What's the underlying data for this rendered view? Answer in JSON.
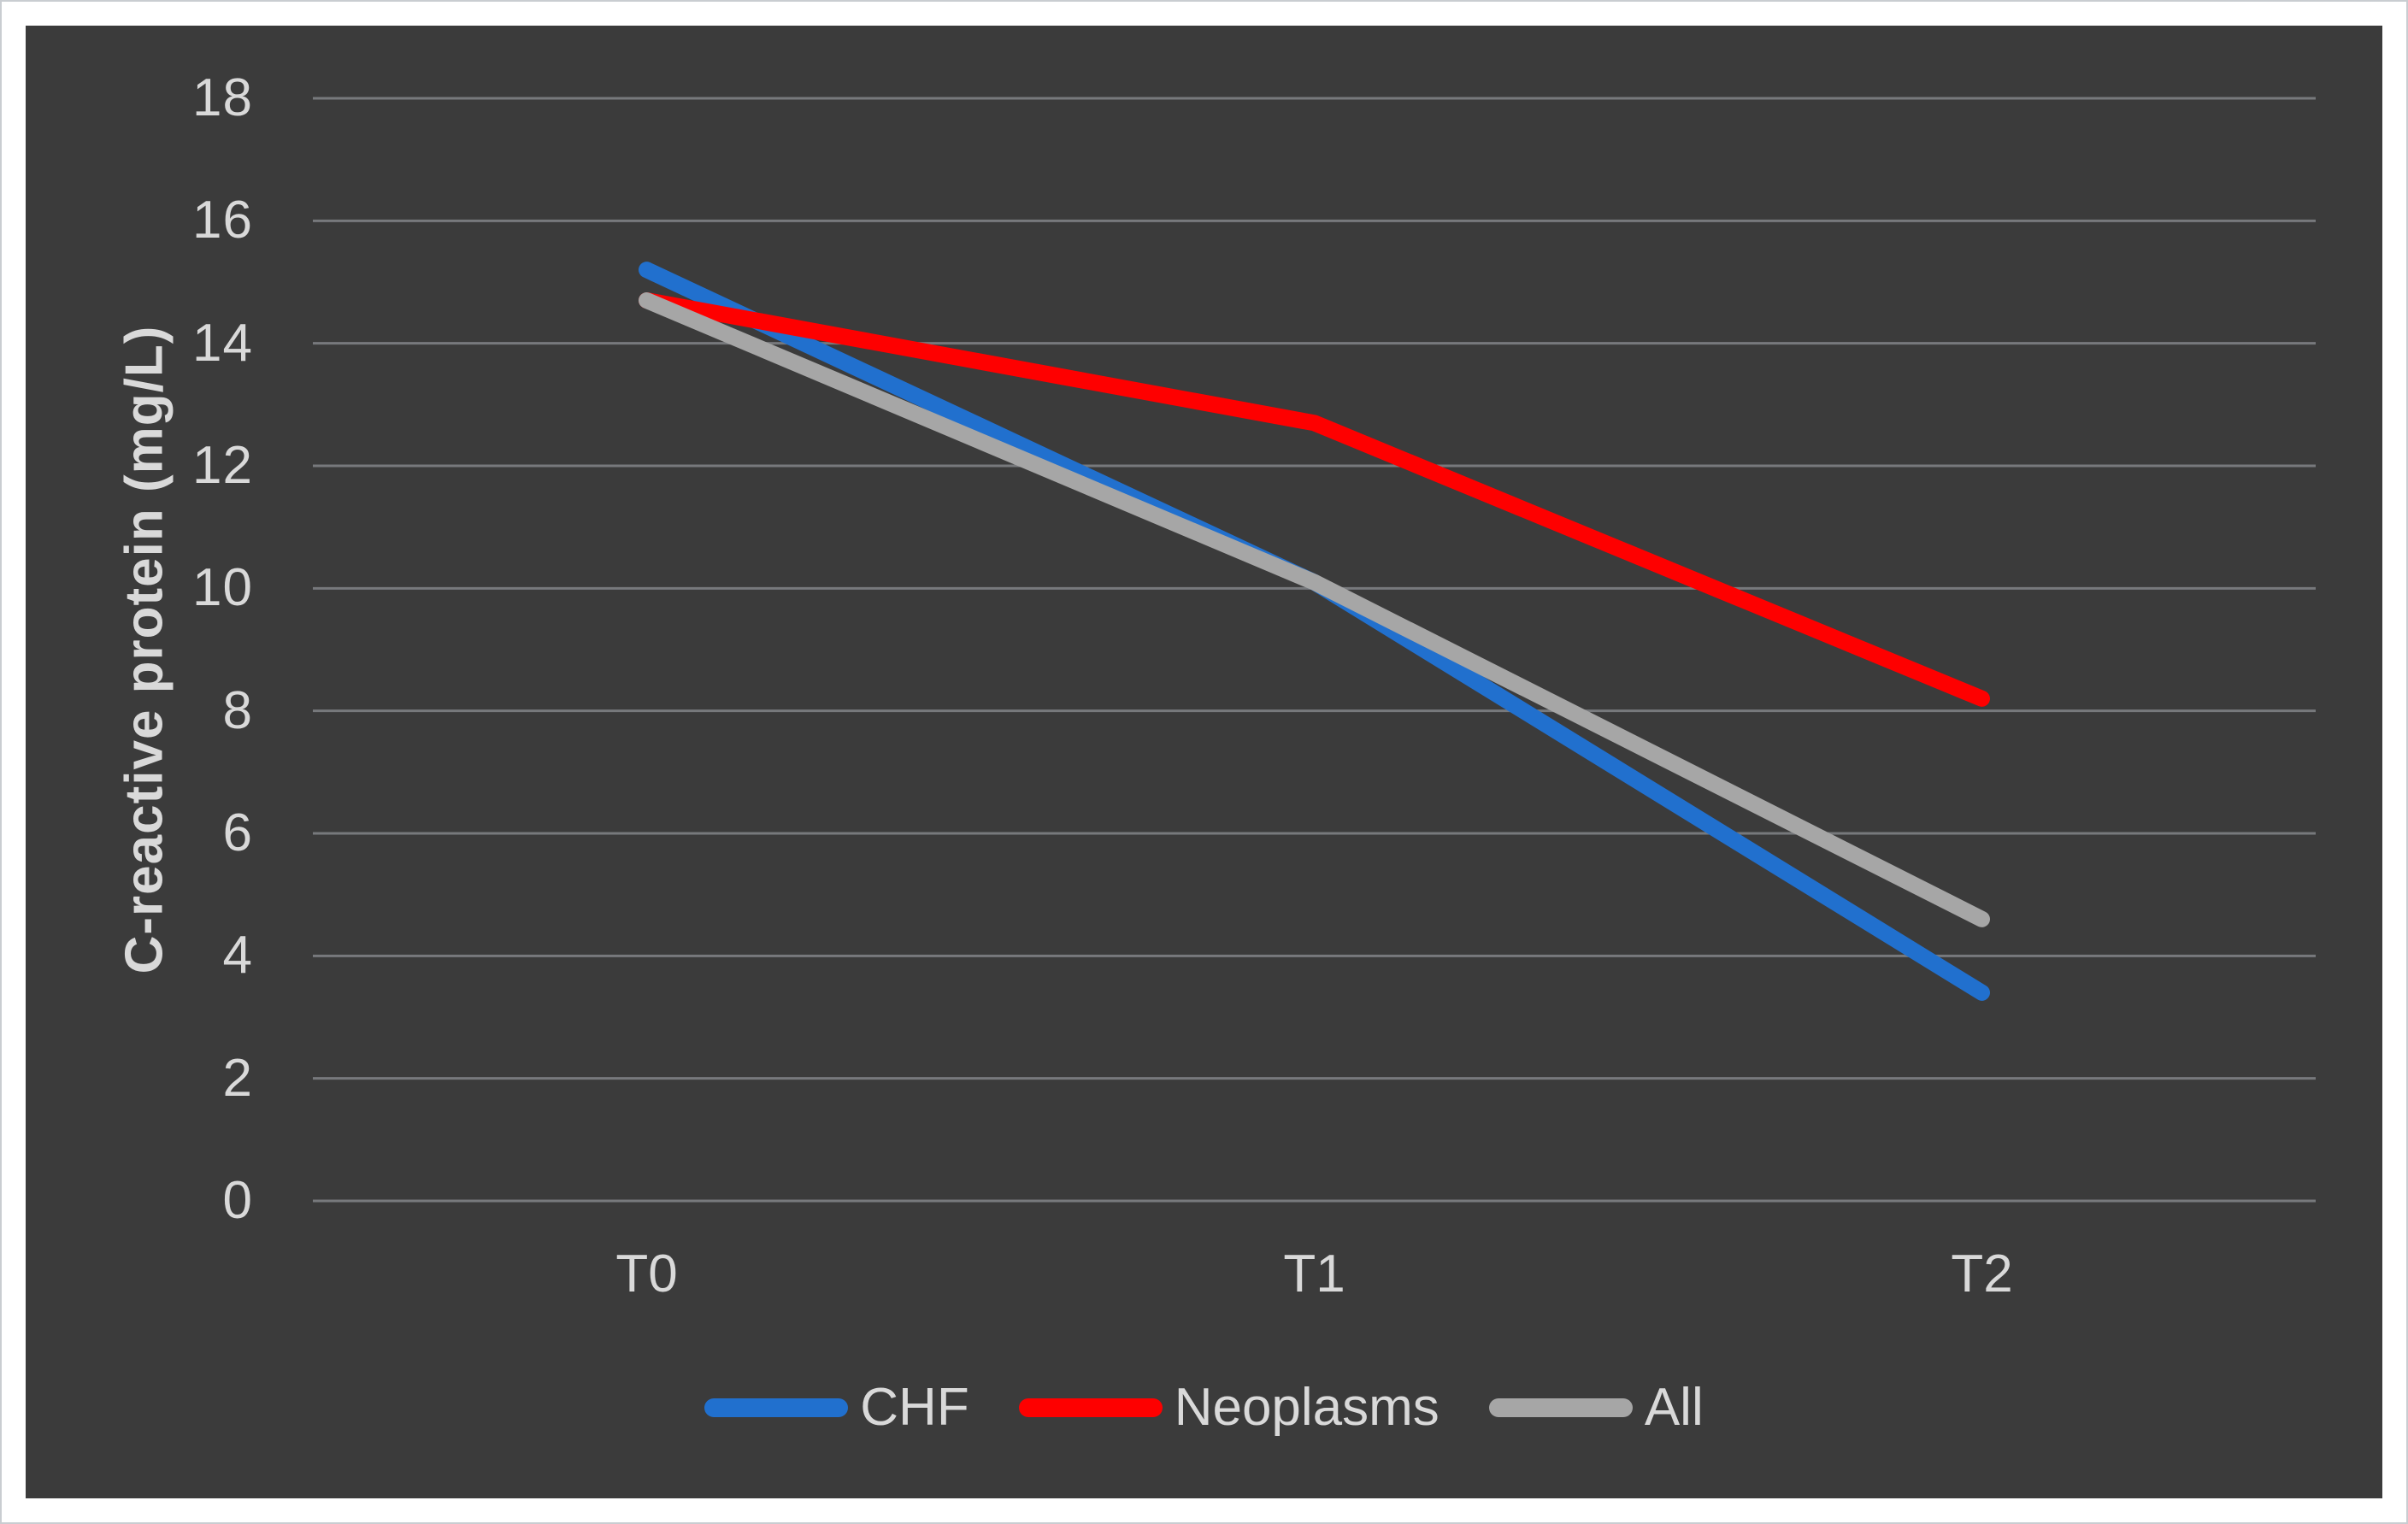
{
  "chart_data": {
    "type": "line",
    "categories": [
      "T0",
      "T1",
      "T2"
    ],
    "series": [
      {
        "name": "CHF",
        "color": "#2170ce",
        "values": [
          15.2,
          10.1,
          3.4
        ]
      },
      {
        "name": "Neoplasms",
        "color": "#fe0000",
        "values": [
          14.7,
          12.7,
          8.2
        ]
      },
      {
        "name": "All",
        "color": "#a6a6a6",
        "values": [
          14.7,
          10.1,
          4.6
        ]
      }
    ],
    "title": "",
    "xlabel": "",
    "ylabel": "C-reactive protein (mg/L)",
    "ylim": [
      0,
      18
    ],
    "yticks": [
      0,
      2,
      4,
      6,
      8,
      10,
      12,
      14,
      16,
      18
    ],
    "grid": true,
    "gridlines": "horizontal-only",
    "legend_position": "bottom"
  },
  "colors": {
    "page_background": "#ffffff",
    "page_border": "#c9cdd1",
    "plot_background": "#3b3b3b",
    "gridline": "#77797c",
    "text": "#d9d9d9"
  }
}
